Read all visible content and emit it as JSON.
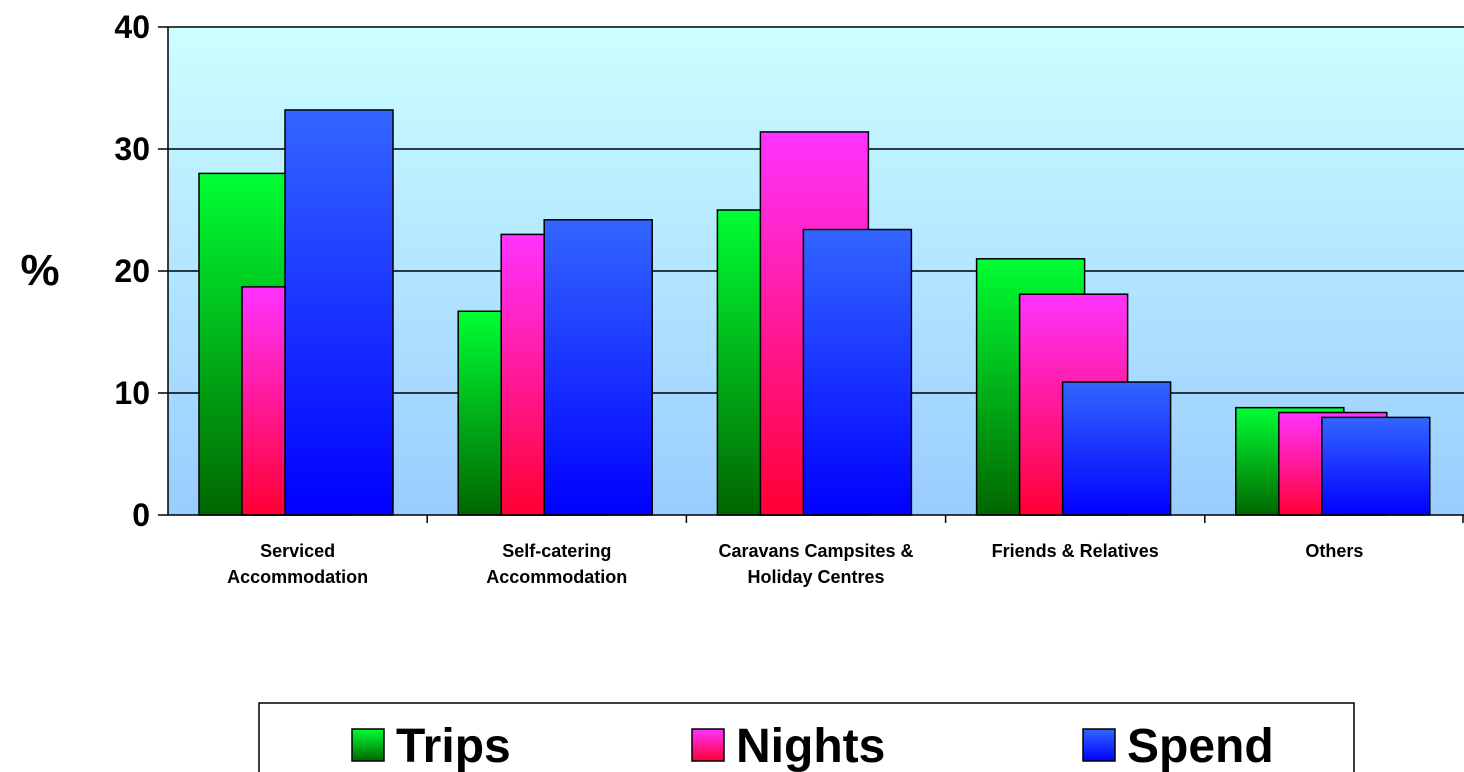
{
  "chart_data": {
    "type": "bar",
    "title": "",
    "xlabel": "",
    "ylabel": "%",
    "ylim": [
      0,
      40
    ],
    "yticks": [
      0,
      10,
      20,
      30,
      40
    ],
    "grid": true,
    "legend_position": "bottom",
    "categories": [
      [
        "Serviced",
        "Accommodation"
      ],
      [
        "Self-catering",
        "Accommodation"
      ],
      [
        "Caravans Campsites &",
        "Holiday Centres"
      ],
      [
        "Friends & Relatives"
      ],
      [
        "Others"
      ]
    ],
    "series": [
      {
        "name": "Trips",
        "values": [
          28,
          16.7,
          25,
          21,
          8.8
        ],
        "color_top": "#00ff33",
        "color_bottom": "#006600"
      },
      {
        "name": "Nights",
        "values": [
          18.7,
          23,
          31.4,
          18.1,
          8.4
        ],
        "color_top": "#ff33ff",
        "color_bottom": "#ff0033"
      },
      {
        "name": "Spend",
        "values": [
          33.2,
          24.2,
          23.4,
          10.9,
          8
        ],
        "color_top": "#3366ff",
        "color_bottom": "#0000ff"
      }
    ],
    "colors": {
      "plot_bg_top": "#ccffff",
      "plot_bg_bottom": "#99ccff"
    }
  }
}
